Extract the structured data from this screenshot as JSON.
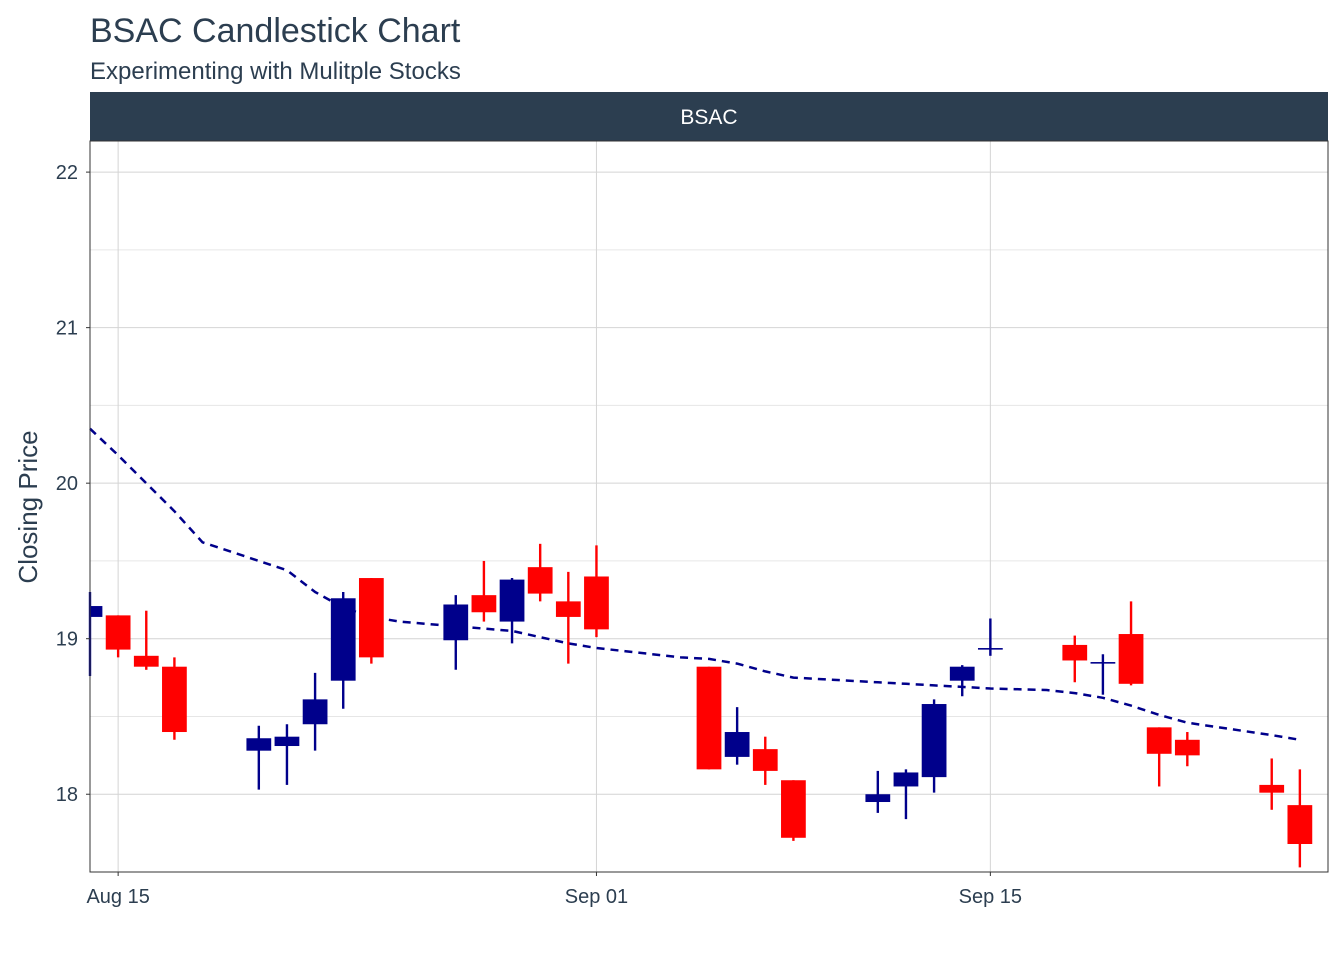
{
  "chart_data": {
    "type": "candlestick",
    "title": "BSAC Candlestick Chart",
    "subtitle": "Experimenting with Mulitple Stocks",
    "facet_label": "BSAC",
    "xlabel": "",
    "ylabel": "Closing Price",
    "xlim": [
      "2018-08-14",
      "2018-09-27"
    ],
    "ylim": [
      17.5,
      22.2
    ],
    "y_ticks": [
      18,
      19,
      20,
      21,
      22
    ],
    "x_ticks": [
      {
        "date": "2018-08-15",
        "label": "Aug 15"
      },
      {
        "date": "2018-09-01",
        "label": "Sep 01"
      },
      {
        "date": "2018-09-15",
        "label": "Sep 15"
      }
    ],
    "grid": true,
    "colors": {
      "up": "#00008b",
      "down": "#ff0000",
      "ma": "#00008b",
      "strip_bg": "#2c3e50",
      "text": "#2c3e50"
    },
    "candles": [
      {
        "date": "2018-08-14",
        "open": 19.14,
        "high": 19.3,
        "low": 18.76,
        "close": 19.21
      },
      {
        "date": "2018-08-15",
        "open": 19.15,
        "high": 19.15,
        "low": 18.88,
        "close": 18.93
      },
      {
        "date": "2018-08-16",
        "open": 18.89,
        "high": 19.18,
        "low": 18.8,
        "close": 18.82
      },
      {
        "date": "2018-08-17",
        "open": 18.82,
        "high": 18.88,
        "low": 18.35,
        "close": 18.4
      },
      {
        "date": "2018-08-20",
        "open": 18.28,
        "high": 18.44,
        "low": 18.03,
        "close": 18.36
      },
      {
        "date": "2018-08-21",
        "open": 18.31,
        "high": 18.45,
        "low": 18.06,
        "close": 18.37
      },
      {
        "date": "2018-08-22",
        "open": 18.45,
        "high": 18.78,
        "low": 18.28,
        "close": 18.61
      },
      {
        "date": "2018-08-23",
        "open": 18.73,
        "high": 19.3,
        "low": 18.55,
        "close": 19.26
      },
      {
        "date": "2018-08-24",
        "open": 19.39,
        "high": 19.39,
        "low": 18.84,
        "close": 18.88
      },
      {
        "date": "2018-08-27",
        "open": 18.99,
        "high": 19.28,
        "low": 18.8,
        "close": 19.22
      },
      {
        "date": "2018-08-28",
        "open": 19.28,
        "high": 19.5,
        "low": 19.11,
        "close": 19.17
      },
      {
        "date": "2018-08-29",
        "open": 19.11,
        "high": 19.39,
        "low": 18.97,
        "close": 19.38
      },
      {
        "date": "2018-08-30",
        "open": 19.46,
        "high": 19.61,
        "low": 19.24,
        "close": 19.29
      },
      {
        "date": "2018-08-31",
        "open": 19.24,
        "high": 19.43,
        "low": 18.84,
        "close": 19.14
      },
      {
        "date": "2018-09-01",
        "open": 19.4,
        "high": 19.6,
        "low": 19.01,
        "close": 19.06
      },
      {
        "date": "2018-09-05",
        "open": 18.82,
        "high": 18.82,
        "low": 18.16,
        "close": 18.16
      },
      {
        "date": "2018-09-06",
        "open": 18.24,
        "high": 18.56,
        "low": 18.19,
        "close": 18.4
      },
      {
        "date": "2018-09-07",
        "open": 18.29,
        "high": 18.37,
        "low": 18.06,
        "close": 18.15
      },
      {
        "date": "2018-09-08",
        "open": 18.09,
        "high": 18.09,
        "low": 17.7,
        "close": 17.72
      },
      {
        "date": "2018-09-11",
        "open": 17.95,
        "high": 18.15,
        "low": 17.88,
        "close": 18.0
      },
      {
        "date": "2018-09-12",
        "open": 18.05,
        "high": 18.16,
        "low": 17.84,
        "close": 18.14
      },
      {
        "date": "2018-09-13",
        "open": 18.11,
        "high": 18.61,
        "low": 18.01,
        "close": 18.58
      },
      {
        "date": "2018-09-14",
        "open": 18.73,
        "high": 18.83,
        "low": 18.63,
        "close": 18.82
      },
      {
        "date": "2018-09-15",
        "open": 18.93,
        "high": 19.13,
        "low": 18.89,
        "close": 18.94
      },
      {
        "date": "2018-09-18",
        "open": 18.96,
        "high": 19.02,
        "low": 18.72,
        "close": 18.86
      },
      {
        "date": "2018-09-19",
        "open": 18.84,
        "high": 18.9,
        "low": 18.64,
        "close": 18.85
      },
      {
        "date": "2018-09-20",
        "open": 19.03,
        "high": 19.24,
        "low": 18.7,
        "close": 18.71
      },
      {
        "date": "2018-09-21",
        "open": 18.43,
        "high": 18.43,
        "low": 18.05,
        "close": 18.26
      },
      {
        "date": "2018-09-22",
        "open": 18.35,
        "high": 18.4,
        "low": 18.18,
        "close": 18.25
      },
      {
        "date": "2018-09-25",
        "open": 18.06,
        "high": 18.23,
        "low": 17.9,
        "close": 18.01
      },
      {
        "date": "2018-09-26",
        "open": 17.93,
        "high": 18.16,
        "low": 17.53,
        "close": 17.68
      }
    ],
    "moving_average": {
      "style": "dashed",
      "points": [
        {
          "date": "2018-08-14",
          "value": 20.35
        },
        {
          "date": "2018-08-15",
          "value": 20.18
        },
        {
          "date": "2018-08-17",
          "value": 19.82
        },
        {
          "date": "2018-08-18",
          "value": 19.62
        },
        {
          "date": "2018-08-20",
          "value": 19.5
        },
        {
          "date": "2018-08-21",
          "value": 19.44
        },
        {
          "date": "2018-08-22",
          "value": 19.3
        },
        {
          "date": "2018-08-23",
          "value": 19.2
        },
        {
          "date": "2018-08-24",
          "value": 19.14
        },
        {
          "date": "2018-08-25",
          "value": 19.11
        },
        {
          "date": "2018-08-27",
          "value": 19.08
        },
        {
          "date": "2018-08-29",
          "value": 19.05
        },
        {
          "date": "2018-08-31",
          "value": 18.97
        },
        {
          "date": "2018-09-01",
          "value": 18.94
        },
        {
          "date": "2018-09-04",
          "value": 18.88
        },
        {
          "date": "2018-09-05",
          "value": 18.87
        },
        {
          "date": "2018-09-06",
          "value": 18.84
        },
        {
          "date": "2018-09-07",
          "value": 18.79
        },
        {
          "date": "2018-09-08",
          "value": 18.75
        },
        {
          "date": "2018-09-11",
          "value": 18.72
        },
        {
          "date": "2018-09-12",
          "value": 18.71
        },
        {
          "date": "2018-09-13",
          "value": 18.7
        },
        {
          "date": "2018-09-14",
          "value": 18.69
        },
        {
          "date": "2018-09-15",
          "value": 18.68
        },
        {
          "date": "2018-09-17",
          "value": 18.67
        },
        {
          "date": "2018-09-18",
          "value": 18.65
        },
        {
          "date": "2018-09-19",
          "value": 18.62
        },
        {
          "date": "2018-09-20",
          "value": 18.57
        },
        {
          "date": "2018-09-21",
          "value": 18.51
        },
        {
          "date": "2018-09-22",
          "value": 18.46
        },
        {
          "date": "2018-09-25",
          "value": 18.38
        },
        {
          "date": "2018-09-26",
          "value": 18.35
        }
      ]
    }
  }
}
